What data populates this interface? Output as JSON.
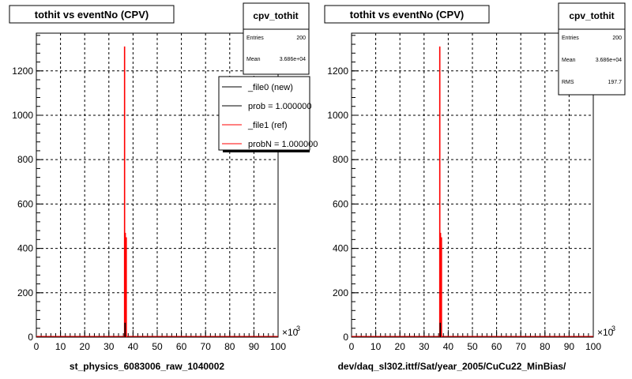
{
  "chart_data": [
    {
      "type": "bar",
      "title": "tothit vs eventNo (CPV)",
      "xlabel": "st_physics_6083006_raw_1040002",
      "x_multiplier_label": "×10",
      "x_multiplier_exp": "3",
      "xlim": [
        0,
        100
      ],
      "ylim": [
        0,
        1370
      ],
      "xticks": [
        "0",
        "10",
        "20",
        "30",
        "40",
        "50",
        "60",
        "70",
        "80",
        "90",
        "100"
      ],
      "yticks": [
        "0",
        "200",
        "400",
        "600",
        "800",
        "1000",
        "1200"
      ],
      "grid": true,
      "stats": {
        "name": "cpv_tothit",
        "entries_label": "Entries",
        "entries": "200",
        "mean_label": "Mean",
        "mean": "3.686e+04"
      },
      "legend": {
        "position": "top-right",
        "entries": [
          "_file0 (new)",
          "prob = 1.000000",
          "_file1 (ref)",
          "probN = 1.000000"
        ],
        "colors": [
          "#000000",
          "#000000",
          "#ff0000",
          "#ff0000"
        ]
      },
      "series": [
        {
          "color": "#ff0000",
          "x": [
            36.5,
            36.8,
            37.2
          ],
          "y": [
            1310,
            470,
            450
          ]
        },
        {
          "color": "#000000",
          "x": [
            36.7
          ],
          "y": [
            65
          ]
        }
      ]
    },
    {
      "type": "bar",
      "title": "tothit vs eventNo (CPV)",
      "xlabel": "dev/daq_sl302.ittf/Sat/year_2005/CuCu22_MinBias/",
      "x_multiplier_label": "×10",
      "x_multiplier_exp": "3",
      "xlim": [
        0,
        100
      ],
      "ylim": [
        0,
        1370
      ],
      "xticks": [
        "0",
        "10",
        "20",
        "30",
        "40",
        "50",
        "60",
        "70",
        "80",
        "90",
        "100"
      ],
      "yticks": [
        "0",
        "200",
        "400",
        "600",
        "800",
        "1000",
        "1200"
      ],
      "grid": true,
      "stats": {
        "name": "cpv_tothit",
        "entries_label": "Entries",
        "entries": "200",
        "mean_label": "Mean",
        "mean": "3.686e+04",
        "rms_label": "RMS",
        "rms": "197.7"
      },
      "series": [
        {
          "color": "#ff0000",
          "x": [
            36.5,
            36.8,
            37.2
          ],
          "y": [
            1310,
            470,
            450
          ]
        },
        {
          "color": "#000000",
          "x": [
            36.7
          ],
          "y": [
            65
          ]
        }
      ]
    }
  ]
}
